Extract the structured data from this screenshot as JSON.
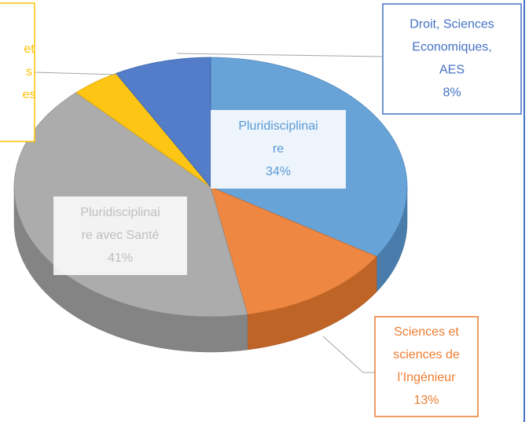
{
  "chart_data": {
    "type": "pie",
    "categories": [
      [
        "Pluridisciplinai",
        "re"
      ],
      [
        "Sciences et",
        "sciences de",
        "l’Ingénieur"
      ],
      [
        "Pluridisciplinai",
        "re avec Santé"
      ],
      [
        "et",
        "s",
        "es"
      ],
      [
        "Droit, Sciences",
        "Economiques,",
        "AES"
      ]
    ],
    "values": [
      34,
      13,
      41,
      4,
      8
    ],
    "value_labels": [
      "34%",
      "13%",
      "41%",
      null,
      "8%"
    ],
    "colors": [
      "#5b9bd5",
      "#ed7d31",
      "#a5a5a5",
      "#ffc000",
      "#4472c4"
    ]
  }
}
